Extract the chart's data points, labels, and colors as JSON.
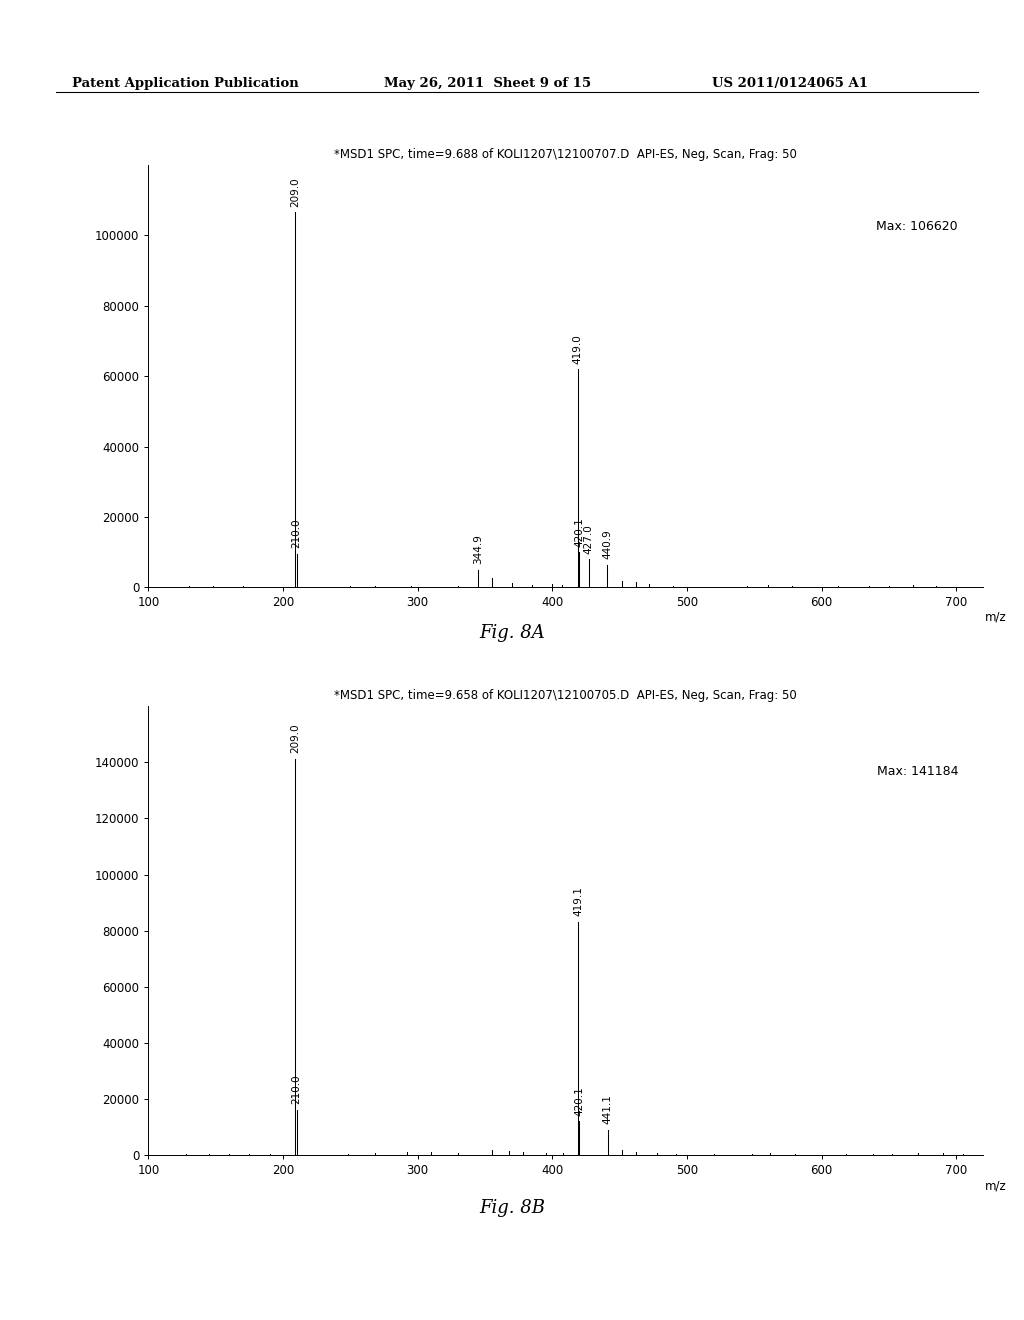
{
  "header_left": "Patent Application Publication",
  "header_mid": "May 26, 2011  Sheet 9 of 15",
  "header_right": "US 2011/0124065 A1",
  "chart_a": {
    "title": "*MSD1 SPC, time=9.688 of KOLI1207\\12100707.D  API-ES, Neg, Scan, Frag: 50",
    "max_label": "Max: 106620",
    "xlabel": "m/z",
    "ylim": [
      0,
      120000
    ],
    "xlim": [
      100,
      720
    ],
    "yticks": [
      0,
      20000,
      40000,
      60000,
      80000,
      100000
    ],
    "xticks": [
      100,
      200,
      300,
      400,
      500,
      600,
      700
    ],
    "fig_label": "Fig. 8A",
    "labeled_peaks": [
      {
        "mz": 209.0,
        "intensity": 106620,
        "label": "209.0"
      },
      {
        "mz": 210.0,
        "intensity": 9500,
        "label": "210.0"
      },
      {
        "mz": 344.9,
        "intensity": 5000,
        "label": "344.9"
      },
      {
        "mz": 419.0,
        "intensity": 62000,
        "label": "419.0"
      },
      {
        "mz": 420.1,
        "intensity": 10000,
        "label": "420.1"
      },
      {
        "mz": 427.0,
        "intensity": 8000,
        "label": "427.0"
      },
      {
        "mz": 440.9,
        "intensity": 6500,
        "label": "440.9"
      }
    ],
    "all_peaks": [
      {
        "mz": 130.0,
        "intensity": 350
      },
      {
        "mz": 148.0,
        "intensity": 280
      },
      {
        "mz": 160.0,
        "intensity": 220
      },
      {
        "mz": 170.0,
        "intensity": 300
      },
      {
        "mz": 185.0,
        "intensity": 250
      },
      {
        "mz": 209.0,
        "intensity": 106620
      },
      {
        "mz": 210.0,
        "intensity": 9500
      },
      {
        "mz": 250.0,
        "intensity": 400
      },
      {
        "mz": 268.0,
        "intensity": 320
      },
      {
        "mz": 295.0,
        "intensity": 280
      },
      {
        "mz": 330.0,
        "intensity": 500
      },
      {
        "mz": 344.9,
        "intensity": 5000
      },
      {
        "mz": 355.0,
        "intensity": 2800
      },
      {
        "mz": 370.0,
        "intensity": 1200
      },
      {
        "mz": 385.0,
        "intensity": 600
      },
      {
        "mz": 400.0,
        "intensity": 900
      },
      {
        "mz": 407.0,
        "intensity": 700
      },
      {
        "mz": 419.0,
        "intensity": 62000
      },
      {
        "mz": 420.1,
        "intensity": 10000
      },
      {
        "mz": 427.0,
        "intensity": 8000
      },
      {
        "mz": 440.9,
        "intensity": 6500
      },
      {
        "mz": 452.0,
        "intensity": 1800
      },
      {
        "mz": 462.0,
        "intensity": 1500
      },
      {
        "mz": 472.0,
        "intensity": 900
      },
      {
        "mz": 490.0,
        "intensity": 500
      },
      {
        "mz": 545.0,
        "intensity": 450
      },
      {
        "mz": 560.0,
        "intensity": 600
      },
      {
        "mz": 578.0,
        "intensity": 380
      },
      {
        "mz": 612.0,
        "intensity": 300
      },
      {
        "mz": 635.0,
        "intensity": 350
      },
      {
        "mz": 650.0,
        "intensity": 420
      },
      {
        "mz": 668.0,
        "intensity": 550
      },
      {
        "mz": 685.0,
        "intensity": 280
      },
      {
        "mz": 700.0,
        "intensity": 220
      }
    ]
  },
  "chart_b": {
    "title": "*MSD1 SPC, time=9.658 of KOLI1207\\12100705.D  API-ES, Neg, Scan, Frag: 50",
    "max_label": "Max: 141184",
    "xlabel": "m/z",
    "ylim": [
      0,
      160000
    ],
    "xlim": [
      100,
      720
    ],
    "yticks": [
      0,
      20000,
      40000,
      60000,
      80000,
      100000,
      120000,
      140000
    ],
    "xticks": [
      100,
      200,
      300,
      400,
      500,
      600,
      700
    ],
    "fig_label": "Fig. 8B",
    "labeled_peaks": [
      {
        "mz": 209.0,
        "intensity": 141184,
        "label": "209.0"
      },
      {
        "mz": 210.0,
        "intensity": 16000,
        "label": "210.0"
      },
      {
        "mz": 419.1,
        "intensity": 83000,
        "label": "419.1"
      },
      {
        "mz": 420.1,
        "intensity": 12000,
        "label": "420.1"
      },
      {
        "mz": 441.1,
        "intensity": 9000,
        "label": "441.1"
      }
    ],
    "all_peaks": [
      {
        "mz": 128.0,
        "intensity": 300
      },
      {
        "mz": 145.0,
        "intensity": 250
      },
      {
        "mz": 160.0,
        "intensity": 200
      },
      {
        "mz": 175.0,
        "intensity": 280
      },
      {
        "mz": 190.0,
        "intensity": 220
      },
      {
        "mz": 209.0,
        "intensity": 141184
      },
      {
        "mz": 210.0,
        "intensity": 16000
      },
      {
        "mz": 248.0,
        "intensity": 400
      },
      {
        "mz": 268.0,
        "intensity": 700
      },
      {
        "mz": 292.0,
        "intensity": 900
      },
      {
        "mz": 310.0,
        "intensity": 1100
      },
      {
        "mz": 330.0,
        "intensity": 700
      },
      {
        "mz": 355.0,
        "intensity": 1800
      },
      {
        "mz": 368.0,
        "intensity": 1400
      },
      {
        "mz": 378.0,
        "intensity": 1200
      },
      {
        "mz": 395.0,
        "intensity": 600
      },
      {
        "mz": 408.0,
        "intensity": 800
      },
      {
        "mz": 419.1,
        "intensity": 83000
      },
      {
        "mz": 420.1,
        "intensity": 12000
      },
      {
        "mz": 441.1,
        "intensity": 9000
      },
      {
        "mz": 452.0,
        "intensity": 1800
      },
      {
        "mz": 462.0,
        "intensity": 1200
      },
      {
        "mz": 478.0,
        "intensity": 700
      },
      {
        "mz": 492.0,
        "intensity": 500
      },
      {
        "mz": 520.0,
        "intensity": 400
      },
      {
        "mz": 548.0,
        "intensity": 500
      },
      {
        "mz": 562.0,
        "intensity": 650
      },
      {
        "mz": 580.0,
        "intensity": 400
      },
      {
        "mz": 618.0,
        "intensity": 350
      },
      {
        "mz": 638.0,
        "intensity": 450
      },
      {
        "mz": 652.0,
        "intensity": 400
      },
      {
        "mz": 672.0,
        "intensity": 600
      },
      {
        "mz": 690.0,
        "intensity": 700
      },
      {
        "mz": 705.0,
        "intensity": 300
      }
    ]
  },
  "bg_color": "#ffffff",
  "font_size_title": 8.5,
  "font_size_tick": 8.5,
  "font_size_peak_label": 7.5,
  "font_size_max": 9.0,
  "font_size_header": 9.5,
  "font_size_fig": 13,
  "font_size_mz": 8.5
}
